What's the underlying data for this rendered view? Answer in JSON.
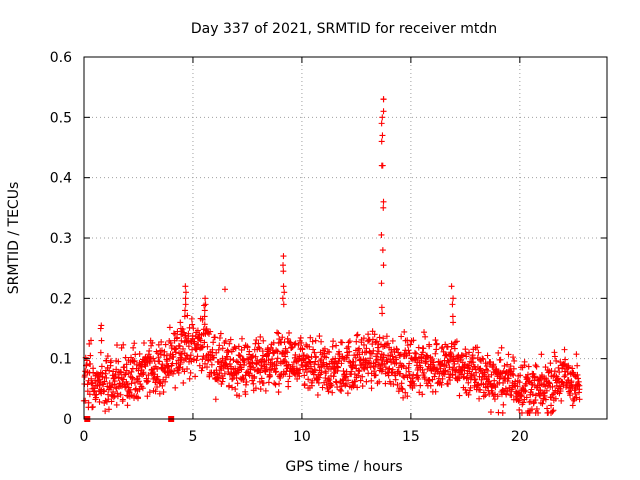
{
  "chart_data": {
    "type": "scatter",
    "title": "Day 337 of 2021, SRMTID for receiver mtdn",
    "xlabel": "GPS time / hours",
    "ylabel": "SRMTID / TECUs",
    "xlim": [
      0,
      24
    ],
    "ylim": [
      0,
      0.6
    ],
    "x_ticks": [
      0,
      5,
      10,
      15,
      20
    ],
    "x_tick_labels": [
      "0",
      "5",
      "10",
      "15",
      "20"
    ],
    "y_ticks": [
      0,
      0.1,
      0.2,
      0.3,
      0.4,
      0.5,
      0.6
    ],
    "y_tick_labels": [
      "0",
      "0.1",
      "0.2",
      "0.3",
      "0.4",
      "0.5",
      "0.6"
    ],
    "grid": true,
    "marker": "+",
    "color": "#ff0000",
    "zero_markers_x": [
      0.15,
      4.0
    ],
    "series": [
      {
        "name": "SRMTID",
        "x_start": 0.0,
        "x_end": 22.75,
        "n_points": 1750,
        "baseline_profile": [
          [
            0.0,
            0.07
          ],
          [
            1.0,
            0.06
          ],
          [
            2.0,
            0.07
          ],
          [
            3.0,
            0.085
          ],
          [
            4.0,
            0.09
          ],
          [
            4.5,
            0.12
          ],
          [
            5.0,
            0.12
          ],
          [
            5.5,
            0.13
          ],
          [
            6.0,
            0.09
          ],
          [
            7.0,
            0.085
          ],
          [
            8.0,
            0.09
          ],
          [
            9.0,
            0.1
          ],
          [
            10.0,
            0.085
          ],
          [
            11.0,
            0.08
          ],
          [
            12.0,
            0.085
          ],
          [
            13.0,
            0.1
          ],
          [
            14.0,
            0.1
          ],
          [
            15.0,
            0.085
          ],
          [
            16.0,
            0.09
          ],
          [
            17.0,
            0.09
          ],
          [
            18.0,
            0.075
          ],
          [
            19.0,
            0.065
          ],
          [
            20.0,
            0.06
          ],
          [
            20.5,
            0.045
          ],
          [
            21.0,
            0.045
          ],
          [
            22.0,
            0.07
          ],
          [
            22.75,
            0.055
          ]
        ],
        "peaks": [
          {
            "x": 0.75,
            "values": [
              0.155,
              0.15,
              0.13,
              0.11
            ]
          },
          {
            "x": 4.4,
            "values": [
              0.16,
              0.15,
              0.14
            ]
          },
          {
            "x": 4.65,
            "values": [
              0.22,
              0.21,
              0.2,
              0.19,
              0.18,
              0.17
            ]
          },
          {
            "x": 5.55,
            "values": [
              0.2,
              0.19,
              0.18,
              0.17
            ]
          },
          {
            "x": 6.5,
            "values": [
              0.215
            ]
          },
          {
            "x": 9.15,
            "values": [
              0.27,
              0.255,
              0.245,
              0.22,
              0.21,
              0.2,
              0.19
            ]
          },
          {
            "x": 13.7,
            "values": [
              0.53,
              0.53,
              0.51,
              0.5,
              0.49,
              0.47,
              0.46,
              0.42,
              0.42,
              0.36,
              0.35,
              0.305,
              0.28,
              0.255,
              0.225,
              0.185,
              0.175
            ]
          },
          {
            "x": 16.9,
            "values": [
              0.22,
              0.2,
              0.19,
              0.17,
              0.16
            ]
          }
        ]
      }
    ]
  }
}
